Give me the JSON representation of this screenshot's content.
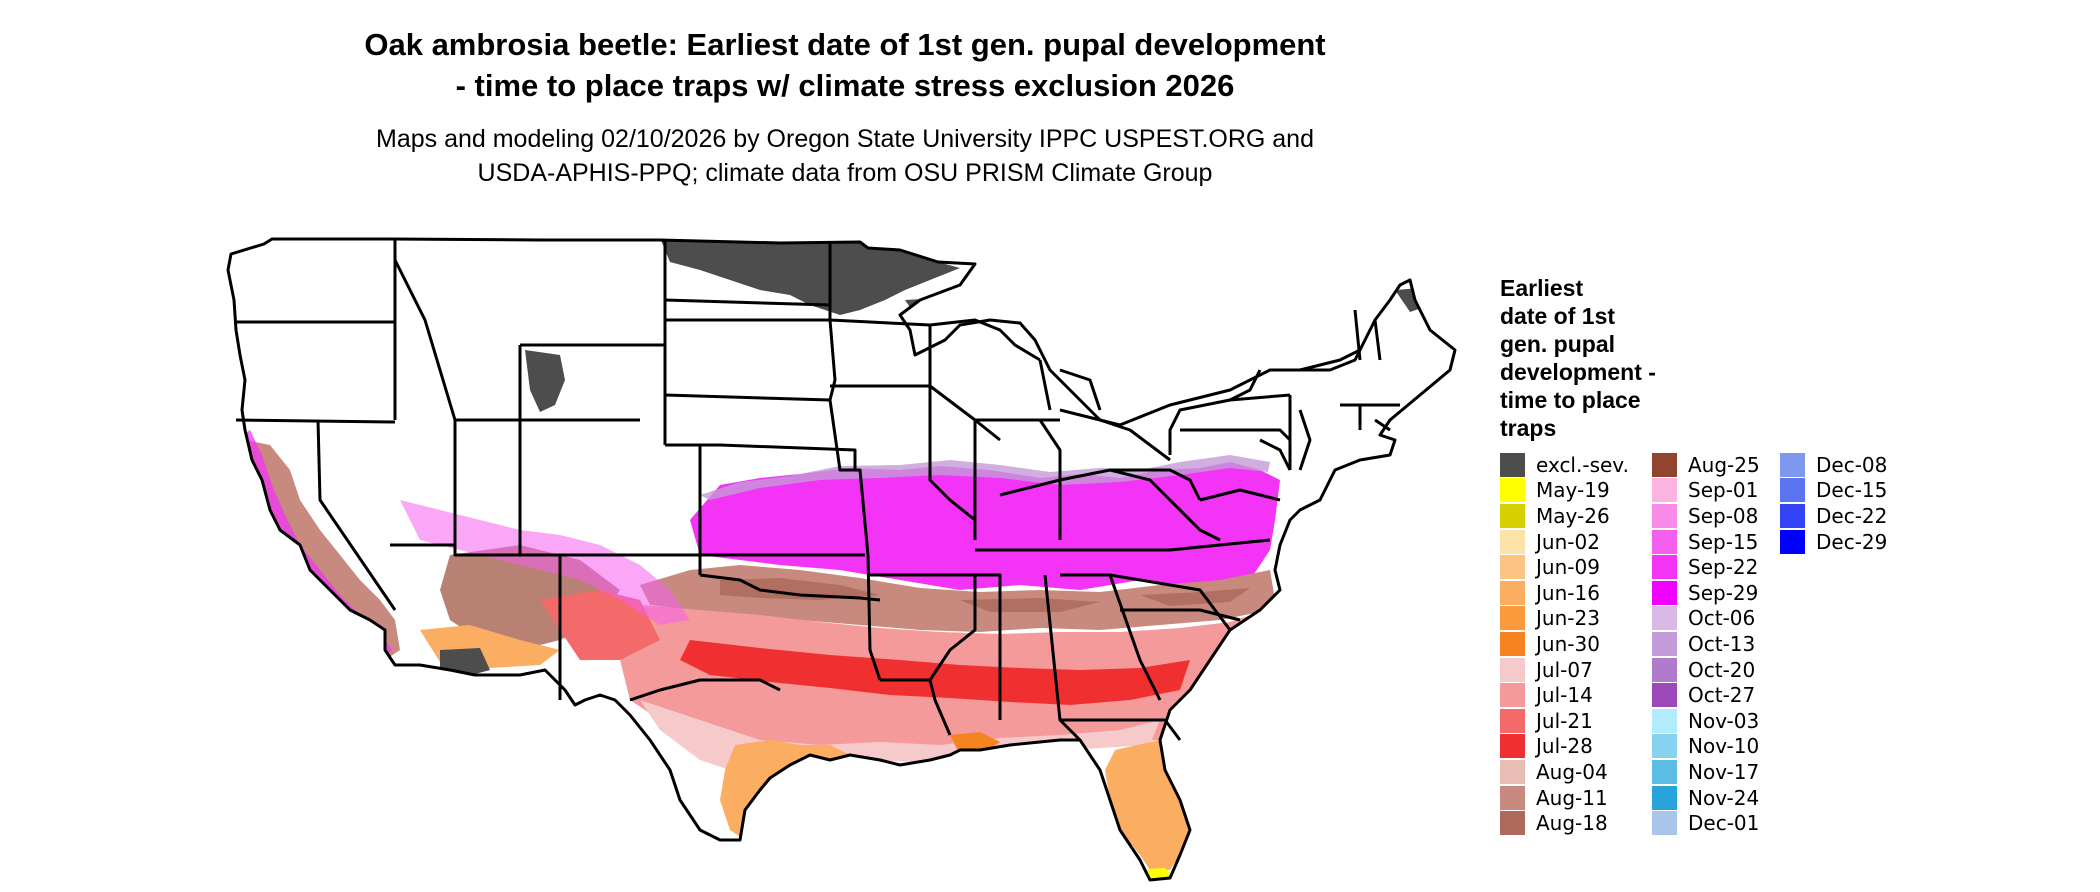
{
  "title": {
    "line1": "Oak ambrosia beetle: Earliest date of 1st gen. pupal development",
    "line2": "- time to place traps w/ climate stress exclusion 2026"
  },
  "subtitle": {
    "line1": "Maps and modeling 02/10/2026 by Oregon State University IPPC USPEST.ORG and",
    "line2": "USDA-APHIS-PPQ; climate data from OSU PRISM Climate Group"
  },
  "legend": {
    "title_lines": [
      "Earliest",
      "date of 1st",
      "gen. pupal",
      "development -",
      "time to place",
      "traps"
    ],
    "columns": [
      [
        {
          "label": "excl.-sev.",
          "color": "#4d4d4d"
        },
        {
          "label": "May-19",
          "color": "#ffff00"
        },
        {
          "label": "May-26",
          "color": "#d6d000"
        },
        {
          "label": "Jun-02",
          "color": "#fde2a8"
        },
        {
          "label": "Jun-09",
          "color": "#fcc483"
        },
        {
          "label": "Jun-16",
          "color": "#fbad62"
        },
        {
          "label": "Jun-23",
          "color": "#fa9a3c"
        },
        {
          "label": "Jun-30",
          "color": "#f58420"
        },
        {
          "label": "Jul-07",
          "color": "#f6caca"
        },
        {
          "label": "Jul-14",
          "color": "#f59a9a"
        },
        {
          "label": "Jul-21",
          "color": "#f46a6a"
        },
        {
          "label": "Jul-28",
          "color": "#f03030"
        },
        {
          "label": "Aug-04",
          "color": "#e8bdb3"
        },
        {
          "label": "Aug-11",
          "color": "#c88a7e"
        },
        {
          "label": "Aug-18",
          "color": "#ad6a5c"
        }
      ],
      [
        {
          "label": "Aug-25",
          "color": "#91452f"
        },
        {
          "label": "Sep-01",
          "color": "#fbb4e0"
        },
        {
          "label": "Sep-08",
          "color": "#f98ae6"
        },
        {
          "label": "Sep-15",
          "color": "#f55ff0"
        },
        {
          "label": "Sep-22",
          "color": "#f333f5"
        },
        {
          "label": "Sep-29",
          "color": "#f000ff"
        },
        {
          "label": "Oct-06",
          "color": "#d8b8e4"
        },
        {
          "label": "Oct-13",
          "color": "#c49ad8"
        },
        {
          "label": "Oct-20",
          "color": "#b07bcc"
        },
        {
          "label": "Oct-27",
          "color": "#9c48b8"
        },
        {
          "label": "Nov-03",
          "color": "#b0ecfc"
        },
        {
          "label": "Nov-10",
          "color": "#86d2ef"
        },
        {
          "label": "Nov-17",
          "color": "#5bbce6"
        },
        {
          "label": "Nov-24",
          "color": "#2aa2da"
        },
        {
          "label": "Dec-01",
          "color": "#a8c6ea"
        }
      ],
      [
        {
          "label": "Dec-08",
          "color": "#7e98ee"
        },
        {
          "label": "Dec-15",
          "color": "#5a74f2"
        },
        {
          "label": "Dec-22",
          "color": "#3344f6"
        },
        {
          "label": "Dec-29",
          "color": "#0000ff"
        }
      ]
    ]
  },
  "map": {
    "region": "contiguous United States with state boundaries",
    "band_colors": {
      "excluded": "#4d4d4d",
      "north_white": "#ffffff",
      "sep_band": "#f333f5",
      "oct_band": "#c49ad8",
      "aug_brown_light": "#e8bdb3",
      "aug_brown_mid": "#c88a7e",
      "aug_brown_dark": "#ad6a5c",
      "jul_pink": "#f59a9a",
      "jul_red": "#f03030",
      "jun_orange": "#fbad62",
      "may_yellow": "#ffff00"
    }
  }
}
